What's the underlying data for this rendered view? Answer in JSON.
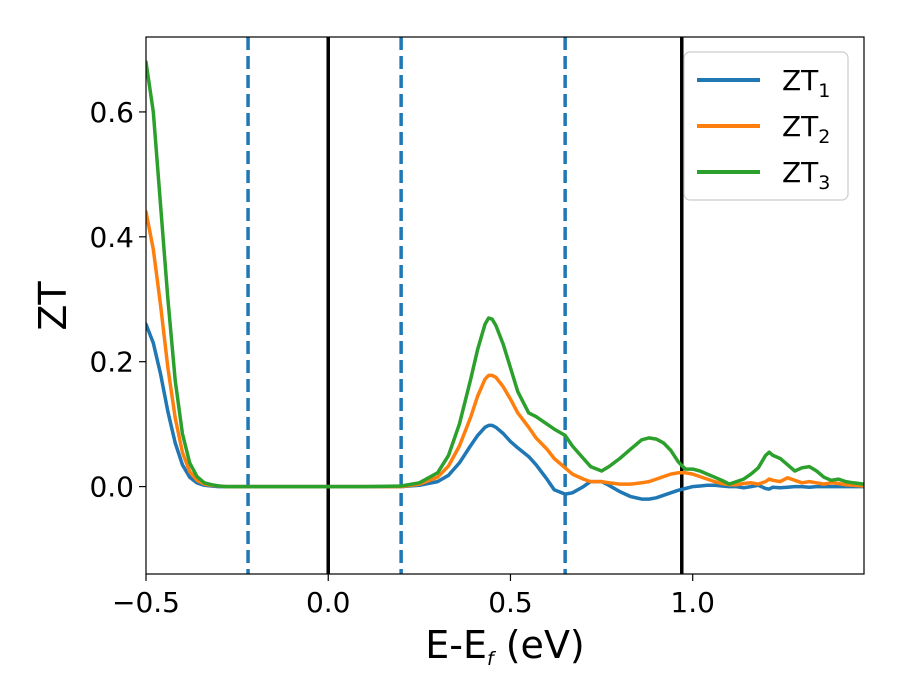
{
  "chart_data": {
    "type": "line",
    "title": "",
    "xlabel": {
      "main": "E-E",
      "sub": "f",
      "suffix": " (eV)"
    },
    "ylabel": "ZT",
    "xlim": [
      -0.5,
      1.47
    ],
    "ylim": [
      -0.14,
      0.72
    ],
    "xticks": [
      -0.5,
      0.0,
      0.5,
      1.0
    ],
    "xtick_labels": [
      "−0.5",
      "0.0",
      "0.5",
      "1.0"
    ],
    "yticks": [
      0.0,
      0.2,
      0.4,
      0.6
    ],
    "ytick_labels": [
      "0.0",
      "0.2",
      "0.4",
      "0.6"
    ],
    "grid": false,
    "legend_position": "top-right",
    "vlines": [
      {
        "x": -0.22,
        "style": "dashed",
        "color": "#1f77b4"
      },
      {
        "x": 0.0,
        "style": "solid",
        "color": "#000000"
      },
      {
        "x": 0.2,
        "style": "dashed",
        "color": "#1f77b4"
      },
      {
        "x": 0.65,
        "style": "dashed",
        "color": "#1f77b4"
      },
      {
        "x": 0.97,
        "style": "solid",
        "color": "#000000"
      }
    ],
    "x": [
      -0.5,
      -0.48,
      -0.46,
      -0.44,
      -0.42,
      -0.4,
      -0.38,
      -0.36,
      -0.34,
      -0.32,
      -0.3,
      -0.28,
      -0.26,
      -0.24,
      -0.2,
      -0.1,
      0.0,
      0.1,
      0.2,
      0.25,
      0.3,
      0.33,
      0.36,
      0.39,
      0.41,
      0.43,
      0.44,
      0.45,
      0.46,
      0.48,
      0.5,
      0.52,
      0.55,
      0.57,
      0.6,
      0.62,
      0.65,
      0.67,
      0.7,
      0.72,
      0.75,
      0.77,
      0.8,
      0.83,
      0.86,
      0.88,
      0.9,
      0.92,
      0.94,
      0.96,
      0.98,
      1.0,
      1.02,
      1.04,
      1.06,
      1.08,
      1.1,
      1.12,
      1.14,
      1.16,
      1.18,
      1.2,
      1.21,
      1.22,
      1.24,
      1.26,
      1.28,
      1.3,
      1.32,
      1.34,
      1.36,
      1.38,
      1.4,
      1.42,
      1.44,
      1.47
    ],
    "series": [
      {
        "name": "ZT",
        "sub": "1",
        "color": "#1f77b4",
        "values": [
          0.26,
          0.23,
          0.18,
          0.12,
          0.07,
          0.035,
          0.015,
          0.006,
          0.002,
          0.001,
          0.0,
          0.0,
          0.0,
          0.0,
          0.0,
          0.0,
          0.0,
          0.0,
          0.0,
          0.002,
          0.008,
          0.018,
          0.038,
          0.065,
          0.082,
          0.095,
          0.098,
          0.098,
          0.095,
          0.085,
          0.072,
          0.062,
          0.048,
          0.035,
          0.012,
          -0.005,
          -0.012,
          -0.01,
          0.0,
          0.008,
          0.008,
          0.002,
          -0.008,
          -0.016,
          -0.02,
          -0.02,
          -0.018,
          -0.014,
          -0.01,
          -0.006,
          -0.003,
          0.0,
          0.001,
          0.002,
          0.002,
          0.001,
          0.0,
          0.0,
          -0.002,
          0.0,
          0.002,
          -0.003,
          -0.004,
          -0.001,
          -0.002,
          -0.001,
          0.0,
          0.0,
          -0.001,
          0.0,
          0.0,
          0.0,
          0.0,
          0.0,
          0.0,
          0.0
        ]
      },
      {
        "name": "ZT",
        "sub": "2",
        "color": "#ff7f0e",
        "values": [
          0.44,
          0.38,
          0.29,
          0.19,
          0.11,
          0.055,
          0.024,
          0.01,
          0.004,
          0.002,
          0.001,
          0.0,
          0.0,
          0.0,
          0.0,
          0.0,
          0.0,
          0.0,
          0.0,
          0.004,
          0.015,
          0.033,
          0.065,
          0.11,
          0.145,
          0.172,
          0.178,
          0.178,
          0.175,
          0.16,
          0.14,
          0.118,
          0.095,
          0.078,
          0.06,
          0.045,
          0.03,
          0.02,
          0.012,
          0.008,
          0.008,
          0.006,
          0.004,
          0.004,
          0.006,
          0.008,
          0.012,
          0.016,
          0.02,
          0.022,
          0.022,
          0.02,
          0.016,
          0.012,
          0.008,
          0.005,
          0.003,
          0.003,
          0.005,
          0.006,
          0.004,
          0.008,
          0.012,
          0.01,
          0.008,
          0.014,
          0.01,
          0.006,
          0.008,
          0.006,
          0.004,
          0.006,
          0.005,
          0.003,
          0.002,
          0.001
        ]
      },
      {
        "name": "ZT",
        "sub": "3",
        "color": "#2ca02c",
        "values": [
          0.68,
          0.6,
          0.45,
          0.3,
          0.17,
          0.085,
          0.038,
          0.016,
          0.006,
          0.003,
          0.001,
          0.0,
          0.0,
          0.0,
          0.0,
          0.0,
          0.0,
          0.0,
          0.001,
          0.006,
          0.022,
          0.05,
          0.1,
          0.17,
          0.22,
          0.26,
          0.27,
          0.268,
          0.258,
          0.228,
          0.19,
          0.152,
          0.118,
          0.112,
          0.1,
          0.092,
          0.082,
          0.065,
          0.045,
          0.032,
          0.025,
          0.032,
          0.045,
          0.06,
          0.075,
          0.078,
          0.076,
          0.07,
          0.058,
          0.04,
          0.028,
          0.028,
          0.025,
          0.02,
          0.015,
          0.01,
          0.004,
          0.008,
          0.012,
          0.02,
          0.03,
          0.05,
          0.055,
          0.05,
          0.045,
          0.035,
          0.025,
          0.03,
          0.032,
          0.025,
          0.015,
          0.01,
          0.012,
          0.008,
          0.006,
          0.004
        ]
      }
    ]
  }
}
